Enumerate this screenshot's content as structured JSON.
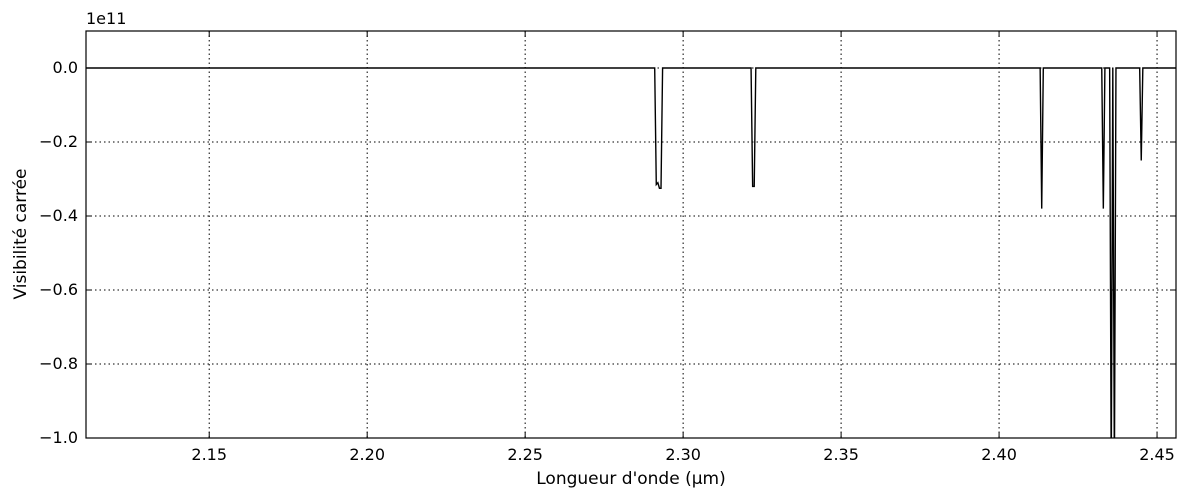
{
  "chart_data": {
    "type": "line",
    "title": "",
    "xlabel": "Longueur d'onde (μm)",
    "ylabel": "Visibilité carrée",
    "y_offset_label": "1e11",
    "xlim": [
      2.111,
      2.456
    ],
    "ylim": [
      -1.0,
      0.1
    ],
    "xticks": [
      2.15,
      2.2,
      2.25,
      2.3,
      2.35,
      2.4,
      2.45
    ],
    "xtick_labels": [
      "2.15",
      "2.20",
      "2.25",
      "2.30",
      "2.35",
      "2.40",
      "2.45"
    ],
    "yticks": [
      0.0,
      -0.2,
      -0.4,
      -0.6,
      -0.8,
      -1.0
    ],
    "ytick_labels": [
      "0.0",
      "−0.2",
      "−0.4",
      "−0.6",
      "−0.8",
      "−1.0"
    ],
    "grid": true,
    "series": [
      {
        "color": "#000000",
        "x": [
          2.111,
          2.291,
          2.2915,
          2.292,
          2.2925,
          2.293,
          2.2935,
          2.294,
          2.3215,
          2.322,
          2.3225,
          2.323,
          2.413,
          2.4135,
          2.414,
          2.4325,
          2.433,
          2.4335,
          2.435,
          2.4355,
          2.436,
          2.4365,
          2.437,
          2.4445,
          2.445,
          2.4455,
          2.456
        ],
        "y": [
          0.0,
          0.0,
          -0.315,
          -0.31,
          -0.325,
          -0.325,
          0.0,
          0.0,
          0.0,
          -0.32,
          -0.32,
          0.0,
          0.0,
          -0.38,
          0.0,
          0.0,
          -0.38,
          0.0,
          0.0,
          -1.1,
          0.0,
          -1.1,
          0.0,
          0.0,
          -0.25,
          0.0,
          0.0
        ]
      }
    ]
  }
}
